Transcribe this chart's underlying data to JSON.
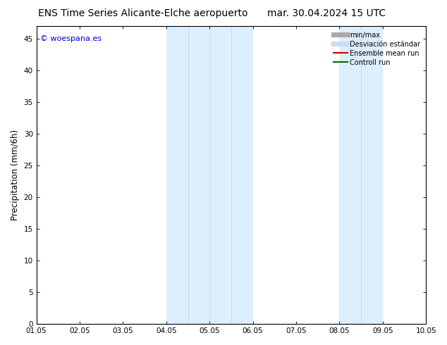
{
  "title_left": "ENS Time Series Alicante-Elche aeropuerto",
  "title_right": "mar. 30.04.2024 15 UTC",
  "ylabel": "Precipitation (mm/6h)",
  "xlabel_ticks": [
    "01.05",
    "02.05",
    "03.05",
    "04.05",
    "05.05",
    "06.05",
    "07.05",
    "08.05",
    "09.05",
    "10.05"
  ],
  "xlim": [
    0,
    9
  ],
  "ylim": [
    0,
    47
  ],
  "yticks": [
    0,
    5,
    10,
    15,
    20,
    25,
    30,
    35,
    40,
    45
  ],
  "bg_color": "#ffffff",
  "plot_bg_color": "#ffffff",
  "shaded_bands": [
    {
      "x_start": 3.0,
      "x_end": 4.0,
      "color": "#ddeeff"
    },
    {
      "x_start": 4.0,
      "x_end": 5.0,
      "color": "#ddeeff"
    },
    {
      "x_start": 7.0,
      "x_end": 8.0,
      "color": "#ddeeff"
    }
  ],
  "band_separators": [
    3.5,
    4.0,
    4.5,
    7.5
  ],
  "watermark_text": "© woespana.es",
  "watermark_color": "#0000cc",
  "legend_entries": [
    {
      "label": "min/max",
      "color": "#aaaaaa",
      "lw": 5
    },
    {
      "label": "Desviación estándar",
      "color": "#c8ddf0",
      "lw": 5
    },
    {
      "label": "Ensemble mean run",
      "color": "#cc0000",
      "lw": 1.5
    },
    {
      "label": "Controll run",
      "color": "#006600",
      "lw": 1.5
    }
  ],
  "title_fontsize": 10,
  "tick_fontsize": 7.5,
  "ylabel_fontsize": 8.5,
  "legend_fontsize": 7
}
